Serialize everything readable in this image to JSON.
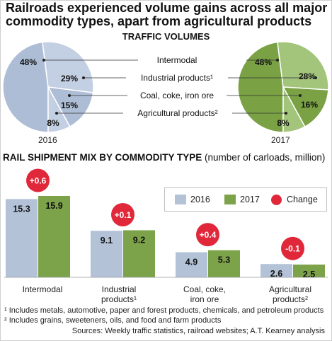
{
  "title": "Railroads experienced volume gains across all major commodity types, apart from agricultural products",
  "pie_section_title": "TRAFFIC VOLUMES",
  "bar_section_title": "RAIL SHIPMENT MIX BY COMMODITY TYPE",
  "bar_section_subtitle": "(number of carloads, million)",
  "pie_labels": [
    "Intermodal",
    "Industrial products¹",
    "Coal, coke, iron ore",
    "Agricultural products²"
  ],
  "legend": {
    "y2016": "2016",
    "y2017": "2017",
    "change": "Change"
  },
  "colors": {
    "y2016": "#b4c2d8",
    "y2017": "#7da34a",
    "change": "#e0283a",
    "pie2016_light": "#c3cfe2",
    "pie2016_dark": "#aebdd6",
    "pie2017_light": "#a3c47b",
    "pie2017_dark": "#7aa144"
  },
  "footnotes": [
    "¹ Includes metals, automotive, paper and forest products, chemicals, and petroleum products",
    "² Includes grains, sweeteners, oils, and food and farm products"
  ],
  "source": "Sources: Weekly traffic statistics, railroad websites; A.T. Kearney analysis",
  "chart_data": [
    {
      "type": "pie",
      "title": "2016",
      "categories": [
        "Intermodal",
        "Industrial products",
        "Coal, coke, iron ore",
        "Agricultural products"
      ],
      "values": [
        48,
        29,
        15,
        8
      ],
      "value_labels": [
        "48%",
        "29%",
        "15%",
        "8%"
      ]
    },
    {
      "type": "pie",
      "title": "2017",
      "categories": [
        "Intermodal",
        "Industrial products",
        "Coal, coke, iron ore",
        "Agricultural products"
      ],
      "values": [
        48,
        28,
        16,
        8
      ],
      "value_labels": [
        "48%",
        "28%",
        "16%",
        "8%"
      ]
    },
    {
      "type": "bar",
      "categories": [
        "Intermodal",
        "Industrial products¹",
        "Coal, coke, iron ore",
        "Agricultural products²"
      ],
      "category_lines": [
        [
          "Intermodal"
        ],
        [
          "Industrial",
          "products¹"
        ],
        [
          "Coal, coke,",
          "iron ore"
        ],
        [
          "Agricultural",
          "products²"
        ]
      ],
      "series": [
        {
          "name": "2016",
          "values": [
            15.3,
            9.1,
            4.9,
            2.6
          ],
          "labels": [
            "15.3",
            "9.1",
            "4.9",
            "2.6"
          ]
        },
        {
          "name": "2017",
          "values": [
            15.9,
            9.2,
            5.3,
            2.5
          ],
          "labels": [
            "15.9",
            "9.2",
            "5.3",
            "2.5"
          ]
        }
      ],
      "change": {
        "name": "Change",
        "values": [
          0.6,
          0.1,
          0.4,
          -0.1
        ],
        "labels": [
          "+0.6",
          "+0.1",
          "+0.4",
          "-0.1"
        ]
      }
    }
  ]
}
